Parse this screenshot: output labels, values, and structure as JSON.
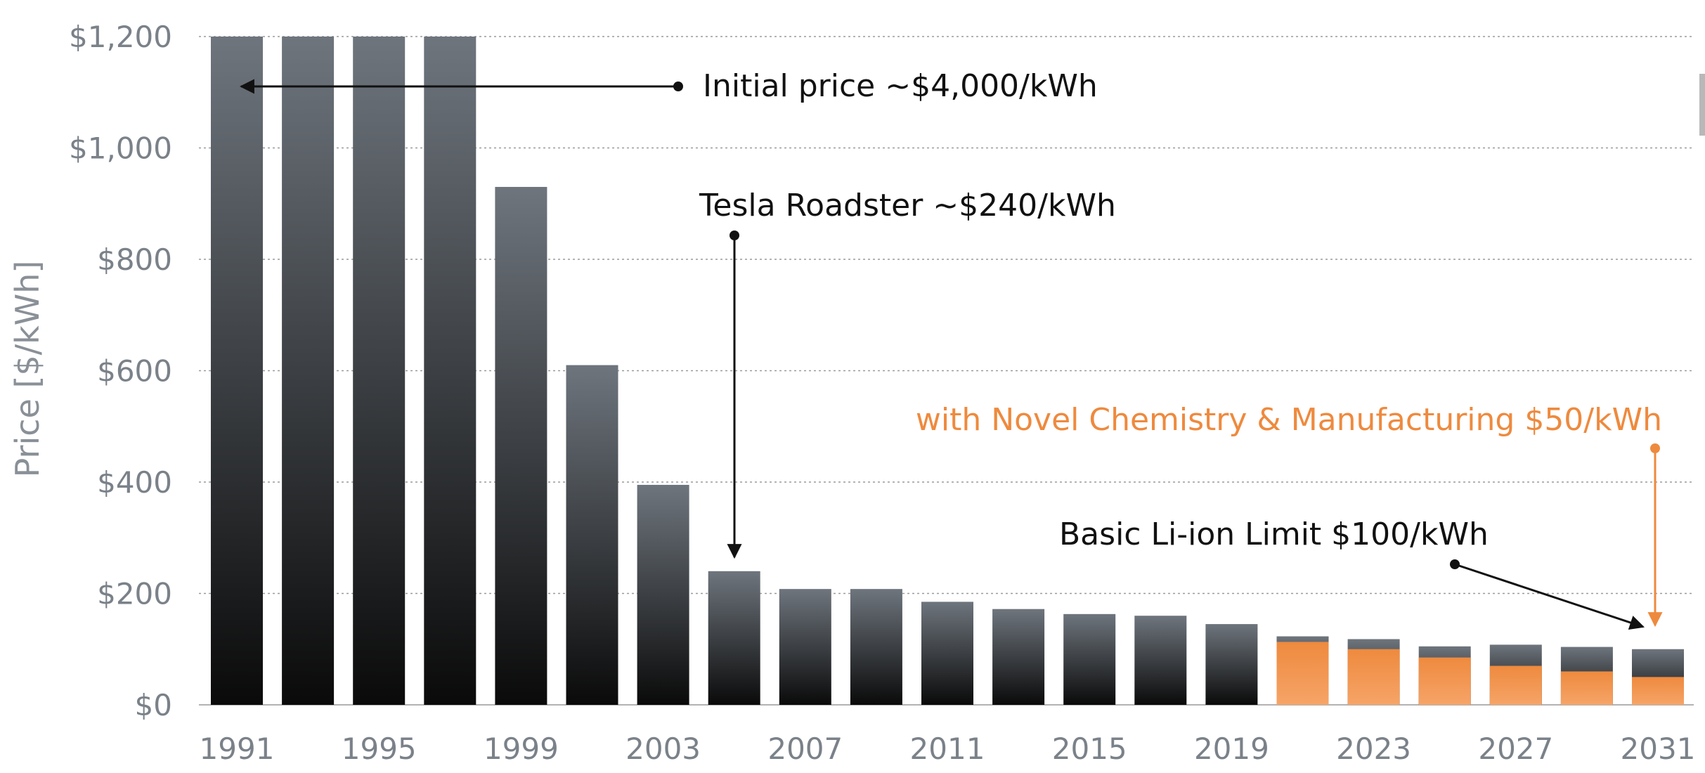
{
  "chart_data": {
    "type": "bar",
    "ylabel": "Price [$/kWh]",
    "xlabel": "",
    "ylim": [
      0,
      1200
    ],
    "y_ticks": [
      "$0",
      "$200",
      "$400",
      "$600",
      "$800",
      "$1,000",
      "$1,200"
    ],
    "y_tick_values": [
      0,
      200,
      400,
      600,
      800,
      1000,
      1200
    ],
    "x_tick_labels": [
      "1991",
      "1995",
      "1999",
      "2003",
      "2007",
      "2011",
      "2015",
      "2019",
      "2023",
      "2027",
      "2031"
    ],
    "grid": true,
    "categories": [
      1991,
      1993,
      1995,
      1997,
      1999,
      2001,
      2003,
      2005,
      2007,
      2009,
      2011,
      2013,
      2015,
      2017,
      2019,
      2021,
      2023,
      2025,
      2027,
      2029,
      2031
    ],
    "series": [
      {
        "values": [
          1200,
          1200,
          1200,
          1200,
          930,
          610,
          395,
          240,
          208,
          208,
          185,
          172,
          163,
          160,
          145,
          123,
          118,
          105,
          108,
          104,
          100
        ]
      },
      {
        "values": [
          null,
          null,
          null,
          null,
          null,
          null,
          null,
          null,
          null,
          null,
          null,
          null,
          null,
          null,
          null,
          113,
          100,
          85,
          70,
          60,
          50
        ]
      }
    ],
    "annotations": [
      {
        "text": "Initial price  ~$4,000/kWh",
        "color": "#111111"
      },
      {
        "text": "Tesla Roadster ~$240/kWh",
        "color": "#111111"
      },
      {
        "text": "with Novel Chemistry & Manufacturing $50/kWh",
        "color": "#ee8a3e"
      },
      {
        "text": "Basic Li-ion Limit $100/kWh",
        "color": "#111111"
      }
    ],
    "colors": {
      "bar_top": "#6e757d",
      "bar_bottom": "#0a0a0a",
      "orange_top": "#ee8a3e",
      "orange_bottom": "#f6a468",
      "grid": "#9a9a9a",
      "axis_text": "#7a8189",
      "annotation": "#111111",
      "annotation_orange": "#ee8a3e"
    }
  }
}
